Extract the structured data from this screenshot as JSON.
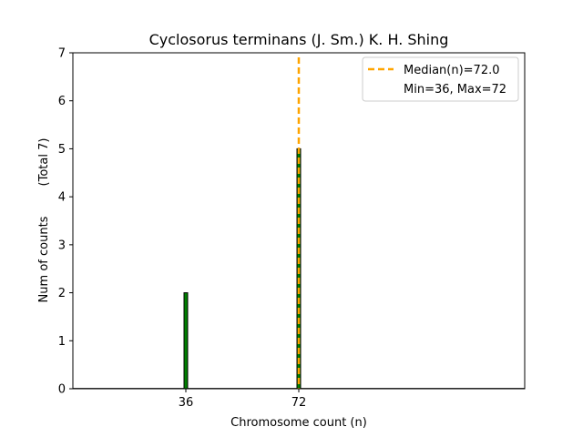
{
  "chart_data": {
    "type": "bar",
    "title": "Cyclosorus terminans (J. Sm.) K. H. Shing",
    "xlabel": "Chromosome count (n)",
    "ylabel": "Num of counts",
    "ylabel_total": "(Total 7)",
    "x_ticks": [
      36,
      72
    ],
    "y_ticks": [
      0,
      1,
      2,
      3,
      4,
      5,
      6,
      7
    ],
    "xlim": [
      0,
      144
    ],
    "ylim": [
      0,
      7
    ],
    "bars": [
      {
        "x": 36,
        "count": 2
      },
      {
        "x": 72,
        "count": 5
      }
    ],
    "bar_color": "#008000",
    "median": 72.0,
    "median_color": "#FFA500",
    "legend": {
      "placement": "top-right",
      "median_label": "Median(n)=72.0",
      "range_label": "Min=36, Max=72"
    }
  }
}
